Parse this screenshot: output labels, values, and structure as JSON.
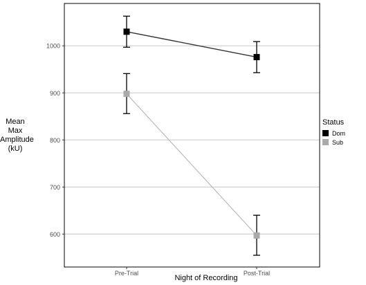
{
  "chart_data": {
    "type": "line",
    "title": "",
    "xlabel": "Night of Recording",
    "ylabel_lines": [
      "Mean",
      "Max",
      "Amplitude",
      "(kU)"
    ],
    "categories": [
      "Pre-Trial",
      "Post-Trial"
    ],
    "ylim": [
      530,
      1090
    ],
    "yticks": [
      600,
      700,
      800,
      900,
      1000
    ],
    "grid": true,
    "legend": {
      "title": "Status",
      "placement": "right",
      "items": [
        {
          "label": "Dom",
          "color": "#000000"
        },
        {
          "label": "Sub",
          "color": "#aaaaaa"
        }
      ]
    },
    "series": [
      {
        "name": "Dom",
        "color": "#000000",
        "values": [
          1030,
          976
        ],
        "err_low": [
          997,
          943
        ],
        "err_high": [
          1063,
          1009
        ]
      },
      {
        "name": "Sub",
        "color": "#aaaaaa",
        "values": [
          898,
          597
        ],
        "err_low": [
          856,
          555
        ],
        "err_high": [
          941,
          640
        ]
      }
    ]
  }
}
